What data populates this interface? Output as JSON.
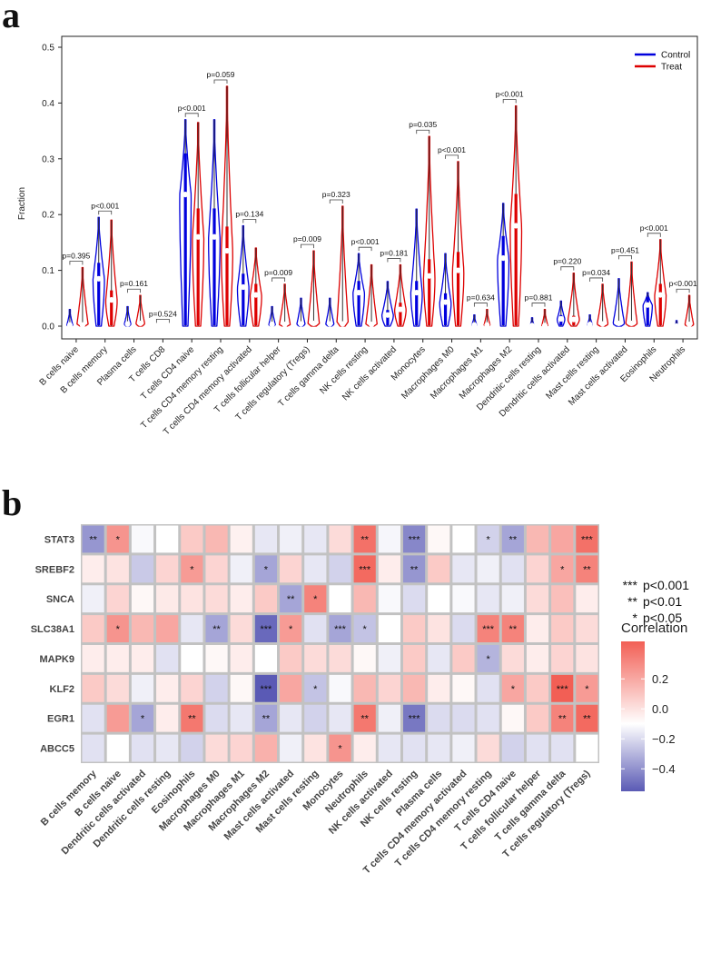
{
  "panel_a": {
    "letter": "a"
  },
  "panel_b": {
    "letter": "b"
  },
  "chart_data": [
    {
      "type": "violin",
      "ylabel": "Fraction",
      "ylim": [
        0,
        0.5
      ],
      "yticks": [
        "0.0",
        "0.1",
        "0.2",
        "0.3",
        "0.4",
        "0.5"
      ],
      "legend": {
        "position": "top-right",
        "entries": [
          {
            "name": "Control",
            "color": "#0000dd"
          },
          {
            "name": "Treat",
            "color": "#dd0000"
          }
        ]
      },
      "categories": [
        "B cells naive",
        "B cells memory",
        "Plasma cells",
        "T cells CD8",
        "T cells CD4 naive",
        "T cells CD4 memory resting",
        "T cells CD4 memory activated",
        "T cells follicular helper",
        "T cells regulatory (Tregs)",
        "T cells gamma delta",
        "NK cells resting",
        "NK cells activated",
        "Monocytes",
        "Macrophages M0",
        "Macrophages M1",
        "Macrophages M2",
        "Dendritic cells resting",
        "Dendritic cells activated",
        "Mast cells resting",
        "Mast cells activated",
        "Eosinophils",
        "Neutrophils"
      ],
      "p_values": [
        "p=0.395",
        "p<0.001",
        "p=0.161",
        "p=0.524",
        "p<0.001",
        "p=0.059",
        "p=0.134",
        "p=0.009",
        "p=0.009",
        "p=0.323",
        "p<0.001",
        "p=0.181",
        "p=0.035",
        "p<0.001",
        "p=0.634",
        "p<0.001",
        "p=0.881",
        "p=0.220",
        "p=0.034",
        "p=0.451",
        "p<0.001",
        "p<0.001"
      ],
      "series": [
        {
          "name": "Control",
          "max": [
            0.03,
            0.195,
            0.035,
            0.001,
            0.37,
            0.37,
            0.18,
            0.035,
            0.05,
            0.05,
            0.13,
            0.08,
            0.21,
            0.13,
            0.02,
            0.22,
            0.015,
            0.045,
            0.02,
            0.085,
            0.06,
            0.01
          ],
          "median": [
            0.002,
            0.085,
            0.004,
            0.0,
            0.236,
            0.16,
            0.07,
            0.003,
            0.004,
            0.004,
            0.06,
            0.02,
            0.06,
            0.043,
            0.002,
            0.122,
            0.001,
            0.013,
            0.003,
            0.005,
            0.038,
            0.0
          ]
        },
        {
          "name": "Treat",
          "max": [
            0.105,
            0.19,
            0.055,
            0.001,
            0.365,
            0.43,
            0.14,
            0.075,
            0.135,
            0.215,
            0.11,
            0.11,
            0.34,
            0.295,
            0.03,
            0.395,
            0.03,
            0.095,
            0.075,
            0.115,
            0.155,
            0.055
          ],
          "median": [
            0.002,
            0.047,
            0.005,
            0.0,
            0.16,
            0.135,
            0.056,
            0.003,
            0.005,
            0.004,
            0.003,
            0.03,
            0.09,
            0.1,
            0.002,
            0.18,
            0.001,
            0.012,
            0.004,
            0.005,
            0.056,
            0.003
          ]
        }
      ]
    },
    {
      "type": "heatmap",
      "rows": [
        "STAT3",
        "SREBF2",
        "SNCA",
        "SLC38A1",
        "MAPK9",
        "KLF2",
        "EGR1",
        "ABCC5"
      ],
      "columns": [
        "B cells memory",
        "B cells naive",
        "Dendritic cells activated",
        "Dendritic cells resting",
        "Eosinophils",
        "Macrophages M0",
        "Macrophages M1",
        "Macrophages M2",
        "Mast cells activated",
        "Mast cells resting",
        "Monocytes",
        "Neutrophils",
        "NK cells activated",
        "NK cells resting",
        "Plasma cells",
        "T cells CD4 memory activated",
        "T cells CD4 memory resting",
        "T cells CD4 naive",
        "T cells follicular helper",
        "T cells gamma delta",
        "T cells regulatory (Tregs)"
      ],
      "values": [
        [
          -0.35,
          0.3,
          -0.02,
          0.0,
          0.15,
          0.2,
          0.04,
          -0.08,
          -0.05,
          -0.08,
          0.1,
          0.4,
          -0.03,
          -0.4,
          0.02,
          0.0,
          -0.15,
          -0.3,
          0.2,
          0.25,
          0.4
        ],
        [
          0.05,
          0.08,
          -0.18,
          0.12,
          0.28,
          0.12,
          -0.05,
          -0.3,
          0.12,
          -0.08,
          -0.15,
          0.42,
          0.05,
          -0.35,
          0.15,
          -0.08,
          -0.05,
          -0.1,
          0.12,
          0.25,
          0.35
        ],
        [
          -0.05,
          0.12,
          0.02,
          0.06,
          0.08,
          0.1,
          0.05,
          0.15,
          -0.3,
          0.35,
          0.0,
          0.2,
          -0.02,
          -0.12,
          0.0,
          -0.02,
          -0.08,
          -0.05,
          0.1,
          0.18,
          0.05
        ],
        [
          0.15,
          0.3,
          0.2,
          0.25,
          -0.08,
          -0.3,
          0.1,
          -0.5,
          0.28,
          -0.1,
          -0.3,
          -0.2,
          0.0,
          0.15,
          0.08,
          -0.12,
          0.35,
          0.35,
          0.05,
          0.15,
          0.1
        ],
        [
          0.05,
          0.05,
          0.05,
          -0.1,
          0.0,
          0.02,
          0.05,
          0.0,
          0.15,
          0.1,
          0.1,
          0.02,
          -0.05,
          0.15,
          -0.08,
          0.15,
          -0.25,
          0.1,
          0.05,
          0.12,
          0.08
        ],
        [
          0.15,
          0.1,
          -0.05,
          0.05,
          0.12,
          -0.15,
          0.02,
          -0.55,
          0.25,
          -0.2,
          -0.02,
          0.2,
          0.12,
          0.2,
          0.05,
          0.02,
          -0.1,
          0.25,
          0.15,
          0.45,
          0.28
        ],
        [
          -0.1,
          0.28,
          -0.3,
          0.05,
          0.38,
          -0.12,
          -0.08,
          -0.3,
          -0.08,
          -0.15,
          -0.08,
          0.38,
          -0.05,
          -0.45,
          -0.12,
          -0.12,
          -0.1,
          0.02,
          0.15,
          0.35,
          0.42
        ],
        [
          -0.1,
          0.0,
          -0.1,
          -0.08,
          -0.15,
          0.1,
          0.12,
          0.22,
          -0.05,
          0.08,
          0.3,
          0.05,
          -0.08,
          -0.1,
          -0.08,
          -0.05,
          0.1,
          -0.15,
          -0.1,
          -0.1,
          0.0
        ]
      ],
      "stars": [
        [
          "**",
          "*",
          "",
          "",
          "",
          "",
          "",
          "",
          "",
          "",
          "",
          "**",
          "",
          "***",
          "",
          "",
          "*",
          "**",
          "",
          "",
          "***"
        ],
        [
          "",
          "",
          "",
          "",
          "*",
          "",
          "",
          "*",
          "",
          "",
          "",
          "***",
          "",
          "**",
          "",
          "",
          "",
          "",
          "",
          "*",
          "**"
        ],
        [
          "",
          "",
          "",
          "",
          "",
          "",
          "",
          "",
          "**",
          "*",
          "",
          "",
          "",
          "",
          "",
          "",
          "",
          "",
          "",
          "",
          ""
        ],
        [
          "",
          "*",
          "",
          "",
          "",
          "**",
          "",
          "***",
          "*",
          "",
          "***",
          "*",
          "",
          "",
          "",
          "",
          "***",
          "**",
          "",
          "",
          ""
        ],
        [
          "",
          "",
          "",
          "",
          "",
          "",
          "",
          "",
          "",
          "",
          "",
          "",
          "",
          "",
          "",
          "",
          "*",
          "",
          "",
          "",
          ""
        ],
        [
          "",
          "",
          "",
          "",
          "",
          "",
          "",
          "***",
          "",
          "*",
          "",
          "",
          "",
          "",
          "",
          "",
          "",
          "*",
          "",
          "***",
          "*"
        ],
        [
          "",
          "",
          "*",
          "",
          "**",
          "",
          "",
          "**",
          "",
          "",
          "",
          "**",
          "",
          "***",
          "",
          "",
          "",
          "",
          "",
          "**",
          "**"
        ],
        [
          "",
          "",
          "",
          "",
          "",
          "",
          "",
          "",
          "",
          "",
          "*",
          "",
          "",
          "",
          "",
          "",
          "",
          "",
          "",
          "",
          ""
        ]
      ],
      "significance_legend": [
        {
          "stars": "***",
          "label": "p<0.001"
        },
        {
          "stars": "**",
          "label": "p<0.01"
        },
        {
          "stars": "*",
          "label": "p<0.05"
        }
      ],
      "colorbar": {
        "title": "Correlation",
        "ticks": [
          "0.2",
          "0.0",
          "−0.2",
          "−0.4"
        ],
        "tick_values": [
          0.2,
          0.0,
          -0.2,
          -0.4
        ],
        "range": [
          -0.55,
          0.45
        ],
        "low_color": "#5a5ab5",
        "mid_color": "#ffffff",
        "high_color": "#f25f55"
      }
    }
  ]
}
